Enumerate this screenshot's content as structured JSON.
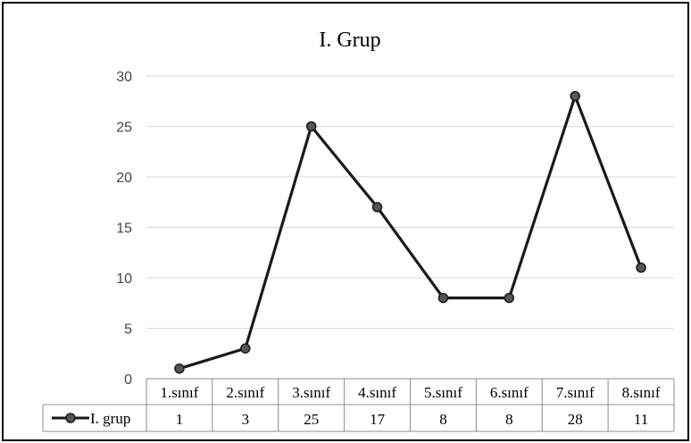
{
  "chart_data": {
    "type": "line",
    "title": "I. Grup",
    "categories": [
      "1.sınıf",
      "2.sınıf",
      "3.sınıf",
      "4.sınıf",
      "5.sınıf",
      "6.sınıf",
      "7.sınıf",
      "8.sınıf"
    ],
    "series": [
      {
        "name": "I. grup",
        "values": [
          1,
          3,
          25,
          17,
          8,
          8,
          28,
          11
        ]
      }
    ],
    "ylim": [
      0,
      30
    ],
    "yticks": [
      0,
      5,
      10,
      15,
      20,
      25,
      30
    ],
    "grid": true,
    "data_table": true,
    "line_color": "#1a1a1a",
    "marker_color": "#555555",
    "grid_color": "#d9d9d9"
  }
}
